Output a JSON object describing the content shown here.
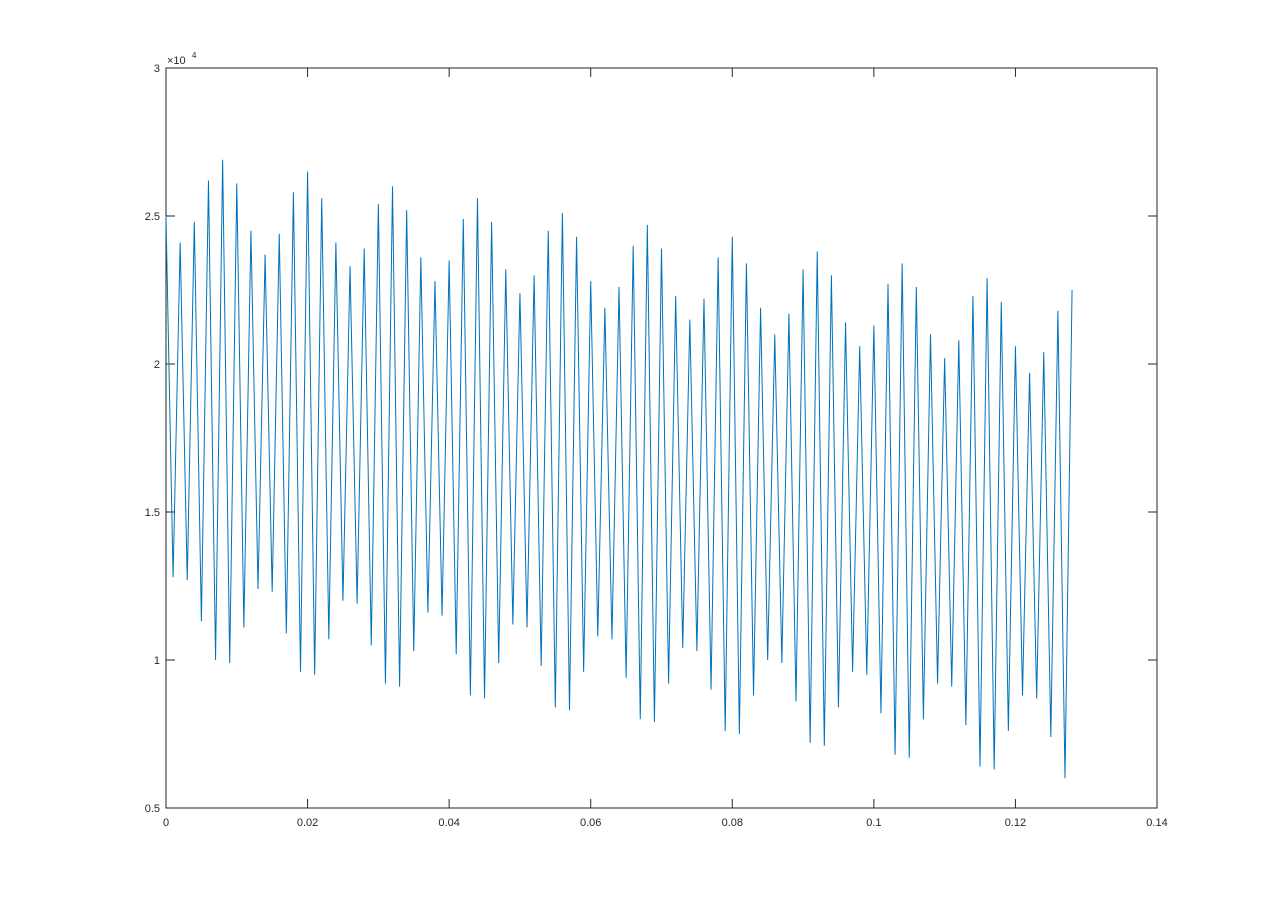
{
  "chart_data": {
    "type": "line",
    "y_exponent_base": "×10",
    "y_exponent": "4",
    "color": "#0072bd",
    "xlim": [
      0,
      0.14
    ],
    "xticks": [
      0,
      0.02,
      0.04,
      0.06,
      0.08,
      0.1,
      0.12,
      0.14
    ],
    "ylim": [
      0.5,
      3
    ],
    "yticks": [
      0.5,
      1,
      1.5,
      2,
      2.5,
      3
    ],
    "grid": false,
    "x": [
      0,
      0.001,
      0.002,
      0.003,
      0.004,
      0.005,
      0.006,
      0.007,
      0.008,
      0.009,
      0.01,
      0.011,
      0.012,
      0.013,
      0.014,
      0.015,
      0.016,
      0.017,
      0.018,
      0.019,
      0.02,
      0.021,
      0.022,
      0.023,
      0.024,
      0.025,
      0.026,
      0.027,
      0.028,
      0.029,
      0.03,
      0.031,
      0.032,
      0.033,
      0.034,
      0.035,
      0.036,
      0.037,
      0.038,
      0.039,
      0.04,
      0.041,
      0.042,
      0.043,
      0.044,
      0.045,
      0.046,
      0.047,
      0.048,
      0.049,
      0.05,
      0.051,
      0.052,
      0.053,
      0.054,
      0.055,
      0.056,
      0.057,
      0.058,
      0.059,
      0.06,
      0.061,
      0.062,
      0.063,
      0.064,
      0.065,
      0.066,
      0.067,
      0.068,
      0.069,
      0.07,
      0.071,
      0.072,
      0.073,
      0.074,
      0.075,
      0.076,
      0.077,
      0.078,
      0.079,
      0.08,
      0.081,
      0.082,
      0.083,
      0.084,
      0.085,
      0.086,
      0.087,
      0.088,
      0.089,
      0.09,
      0.091,
      0.092,
      0.093,
      0.094,
      0.095,
      0.096,
      0.097,
      0.098,
      0.099,
      0.1,
      0.101,
      0.102,
      0.103,
      0.104,
      0.105,
      0.106,
      0.107,
      0.108,
      0.109,
      0.11,
      0.111,
      0.112,
      0.113,
      0.114,
      0.115,
      0.116,
      0.117,
      0.118,
      0.119,
      0.12,
      0.121,
      0.122,
      0.123,
      0.124,
      0.125,
      0.126,
      0.127,
      0.128
    ],
    "values": [
      2.5,
      1.28,
      2.41,
      1.27,
      2.48,
      1.13,
      2.62,
      1.0,
      2.69,
      0.99,
      2.61,
      1.11,
      2.45,
      1.24,
      2.37,
      1.23,
      2.44,
      1.09,
      2.58,
      0.96,
      2.65,
      0.95,
      2.56,
      1.07,
      2.41,
      1.2,
      2.33,
      1.19,
      2.39,
      1.05,
      2.54,
      0.92,
      2.6,
      0.91,
      2.52,
      1.03,
      2.36,
      1.16,
      2.28,
      1.15,
      2.35,
      1.02,
      2.49,
      0.88,
      2.56,
      0.87,
      2.48,
      0.99,
      2.32,
      1.12,
      2.24,
      1.11,
      2.3,
      0.98,
      2.45,
      0.84,
      2.51,
      0.83,
      2.43,
      0.96,
      2.28,
      1.08,
      2.19,
      1.07,
      2.26,
      0.94,
      2.4,
      0.8,
      2.47,
      0.79,
      2.39,
      0.92,
      2.23,
      1.04,
      2.15,
      1.03,
      2.22,
      0.9,
      2.36,
      0.76,
      2.43,
      0.75,
      2.34,
      0.88,
      2.19,
      1.0,
      2.1,
      0.99,
      2.17,
      0.86,
      2.32,
      0.72,
      2.38,
      0.71,
      2.3,
      0.84,
      2.14,
      0.96,
      2.06,
      0.95,
      2.13,
      0.82,
      2.27,
      0.68,
      2.34,
      0.67,
      2.26,
      0.8,
      2.1,
      0.92,
      2.02,
      0.91,
      2.08,
      0.78,
      2.23,
      0.64,
      2.29,
      0.63,
      2.21,
      0.76,
      2.06,
      0.88,
      1.97,
      0.87,
      2.04,
      0.74,
      2.18,
      0.6,
      2.25
    ]
  }
}
